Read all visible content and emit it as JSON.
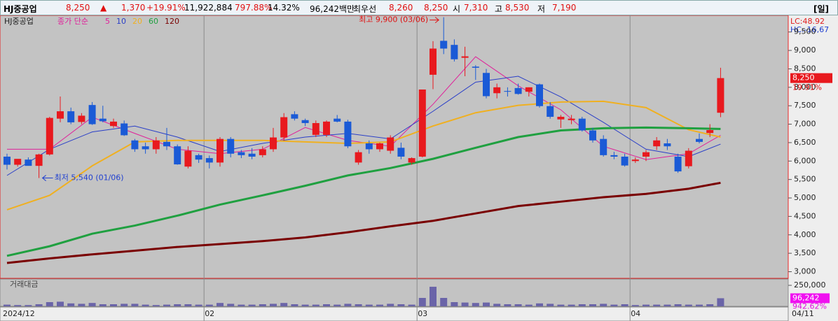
{
  "header": {
    "name": "HJ중공업",
    "price": "8,250",
    "arrow": "▲",
    "change": "1,370",
    "change_pct": "+19.91%",
    "volume": "11,922,884",
    "turnover": "797.88%",
    "ratio": "14.32%",
    "amount": "96,242백만",
    "best_label": "최우선",
    "ask": "8,260",
    "bid": "8,250",
    "open_label": "시",
    "open": "7,310",
    "high_label": "고",
    "high": "8,530",
    "low_label": "저",
    "low": "7,190",
    "period": "[일]"
  },
  "chart_data": {
    "type": "candlestick",
    "stock_name": "HJ중공업",
    "ma_label": "종가 단순",
    "lc": "LC:48.92",
    "hc": "HC:-16,67",
    "high_annotation": "최고 9,900 (03/06)",
    "low_annotation": "최저 5,540 (01/06)",
    "high_index": 41,
    "low_index": 3,
    "current_price_label": "8,250",
    "current_change_label": "19.91%",
    "open": [
      6120,
      5900,
      6040,
      5870,
      6180,
      7150,
      7350,
      7060,
      7520,
      7150,
      6950,
      7020,
      6560,
      6400,
      6320,
      6520,
      6400,
      5850,
      6160,
      6080,
      5960,
      6600,
      6240,
      6200,
      6160,
      6320,
      6640,
      7270,
      7110,
      6710,
      6710,
      7150,
      7070,
      5960,
      6480,
      6320,
      6280,
      6360,
      5960,
      6120,
      8340,
      9260,
      9150,
      8800,
      8560,
      8390,
      7840,
      7900,
      7980,
      7880,
      8080,
      7490,
      7130,
      7110,
      7150,
      6830,
      6600,
      6160,
      6120,
      6000,
      6120,
      6400,
      6480,
      6120,
      5860,
      6600,
      6760,
      7310
    ],
    "high": [
      6200,
      6000,
      6100,
      6200,
      7200,
      7750,
      7450,
      7300,
      7600,
      7500,
      7150,
      7100,
      6600,
      6500,
      6650,
      6900,
      6450,
      6400,
      6200,
      6150,
      6650,
      6650,
      6300,
      6350,
      6400,
      6900,
      7300,
      7350,
      7150,
      7100,
      7100,
      7250,
      7120,
      6300,
      6560,
      6500,
      6700,
      6500,
      6100,
      7940,
      9250,
      9900,
      9300,
      9100,
      8600,
      8500,
      8100,
      8000,
      8100,
      8000,
      8100,
      7600,
      7250,
      7250,
      7200,
      6900,
      6700,
      6250,
      6200,
      6100,
      6300,
      6650,
      6600,
      6200,
      6350,
      6750,
      7000,
      8530
    ],
    "low": [
      5770,
      5850,
      5880,
      5540,
      6150,
      7050,
      7000,
      7000,
      6980,
      7050,
      6900,
      6680,
      6250,
      6200,
      6200,
      6300,
      5900,
      5800,
      5950,
      5800,
      5850,
      6100,
      6080,
      6050,
      6100,
      6250,
      6550,
      7100,
      6950,
      6650,
      6650,
      7050,
      6350,
      5900,
      6200,
      6250,
      6200,
      6050,
      5900,
      6100,
      7950,
      8900,
      8700,
      8300,
      8200,
      7700,
      7700,
      7750,
      7800,
      7750,
      7450,
      7150,
      6900,
      7000,
      6800,
      6500,
      6120,
      6050,
      5850,
      5950,
      6000,
      6300,
      6300,
      5680,
      5800,
      6480,
      6650,
      7190
    ],
    "close": [
      5900,
      6060,
      5870,
      6180,
      7170,
      7350,
      7050,
      7230,
      7000,
      7080,
      7070,
      6700,
      6320,
      6320,
      6560,
      6400,
      5910,
      6280,
      6040,
      5960,
      6600,
      6200,
      6160,
      6120,
      6320,
      6640,
      7190,
      7150,
      7030,
      7030,
      7070,
      7070,
      6400,
      6240,
      6320,
      6480,
      6640,
      6120,
      6080,
      7940,
      9050,
      9050,
      8760,
      8840,
      8530,
      7760,
      8000,
      7880,
      7820,
      8000,
      7490,
      7200,
      7200,
      7150,
      6830,
      6560,
      6160,
      6120,
      5880,
      6040,
      6240,
      6560,
      6400,
      5720,
      6280,
      6520,
      6840,
      8250
    ],
    "moving_averages": [
      {
        "name": "5",
        "color": "#e0209a",
        "x": [
          0,
          4,
          8,
          12,
          16,
          20,
          24,
          28,
          32,
          36,
          40,
          44,
          48,
          52,
          56,
          60,
          64,
          67
        ],
        "values": [
          6320,
          6320,
          7190,
          6750,
          6320,
          6200,
          6320,
          6910,
          6560,
          6400,
          7540,
          8830,
          8040,
          7390,
          6400,
          6040,
          6200,
          6700
        ]
      },
      {
        "name": "10",
        "color": "#2a3fc8",
        "x": [
          0,
          4,
          8,
          12,
          16,
          20,
          24,
          28,
          32,
          36,
          40,
          44,
          48,
          52,
          56,
          60,
          64,
          67
        ],
        "values": [
          5610,
          6320,
          6790,
          6950,
          6650,
          6260,
          6480,
          6650,
          6750,
          6600,
          7350,
          8140,
          8300,
          7740,
          7050,
          6320,
          6120,
          6460
        ]
      },
      {
        "name": "20",
        "color": "#f0b020",
        "x": [
          0,
          4,
          8,
          12,
          16,
          20,
          24,
          28,
          32,
          36,
          40,
          44,
          48,
          52,
          56,
          60,
          64,
          67
        ],
        "values": [
          4680,
          5070,
          5870,
          6520,
          6560,
          6560,
          6560,
          6520,
          6480,
          6520,
          6950,
          7310,
          7510,
          7600,
          7620,
          7450,
          6850,
          6650
        ]
      },
      {
        "name": "60",
        "color": "#1fa040",
        "x": [
          0,
          4,
          8,
          12,
          16,
          20,
          24,
          28,
          32,
          36,
          40,
          44,
          48,
          52,
          56,
          60,
          64,
          67
        ],
        "values": [
          3430,
          3690,
          4030,
          4250,
          4520,
          4820,
          5070,
          5330,
          5610,
          5810,
          6060,
          6360,
          6650,
          6830,
          6890,
          6910,
          6890,
          6870
        ]
      },
      {
        "name": "120",
        "color": "#7a0000",
        "x": [
          0,
          4,
          8,
          12,
          16,
          20,
          24,
          28,
          32,
          36,
          40,
          44,
          48,
          52,
          56,
          60,
          64,
          67
        ],
        "values": [
          3237,
          3360,
          3470,
          3570,
          3670,
          3750,
          3830,
          3930,
          4070,
          4230,
          4380,
          4580,
          4780,
          4900,
          5020,
          5110,
          5250,
          5410
        ]
      }
    ],
    "ylim": [
      2820,
      9950
    ],
    "yticks": [
      {
        "value": 3000,
        "label": "3,000"
      },
      {
        "value": 3500,
        "label": "3,500"
      },
      {
        "value": 4000,
        "label": "4,000"
      },
      {
        "value": 4500,
        "label": "4,500"
      },
      {
        "value": 5000,
        "label": "5,000"
      },
      {
        "value": 5500,
        "label": "5,500"
      },
      {
        "value": 6000,
        "label": "6,000"
      },
      {
        "value": 6500,
        "label": "6,500"
      },
      {
        "value": 7000,
        "label": "7,000"
      },
      {
        "value": 7500,
        "label": "7,500"
      },
      {
        "value": 8000,
        "label": "8,000"
      },
      {
        "value": 8500,
        "label": "8,500"
      },
      {
        "value": 9000,
        "label": "9,000"
      },
      {
        "value": 9500,
        "label": "9,500"
      }
    ],
    "xticks": [
      {
        "value": -0.5,
        "label": "2024/12"
      },
      {
        "value": 18.5,
        "label": "02"
      },
      {
        "value": 38.5,
        "label": "03"
      },
      {
        "value": 58.5,
        "label": "04"
      }
    ],
    "last_date": "04/11",
    "volume_title": "거래대금",
    "volume": [
      20000,
      15000,
      15000,
      25000,
      50000,
      55000,
      35000,
      30000,
      40000,
      25000,
      25000,
      30000,
      30000,
      20000,
      15000,
      20000,
      25000,
      25000,
      20000,
      20000,
      40000,
      30000,
      20000,
      20000,
      25000,
      30000,
      40000,
      25000,
      20000,
      20000,
      25000,
      20000,
      30000,
      25000,
      20000,
      20000,
      30000,
      25000,
      20000,
      100000,
      233000,
      100000,
      50000,
      45000,
      40000,
      45000,
      30000,
      25000,
      25000,
      20000,
      35000,
      30000,
      20000,
      20000,
      25000,
      25000,
      30000,
      20000,
      25000,
      15000,
      20000,
      20000,
      20000,
      25000,
      20000,
      20000,
      25000,
      96242
    ],
    "volume_color": "#6a64a8",
    "volume_ylim": [
      0,
      250000
    ],
    "volume_yticks": [
      {
        "value": 250000,
        "label": "250,000"
      }
    ],
    "current_volume_label": "96,242",
    "current_volume_change": "942.62%"
  }
}
